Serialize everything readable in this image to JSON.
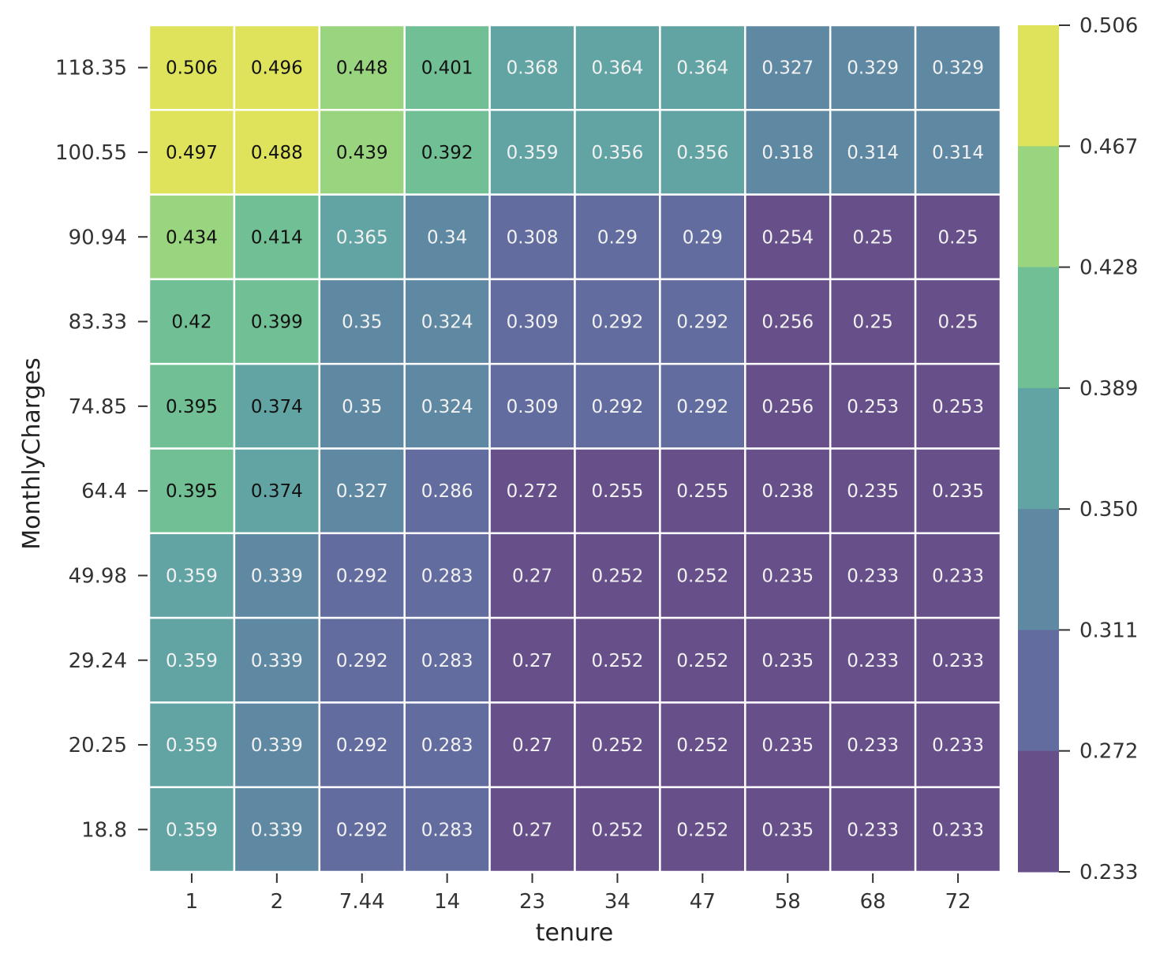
{
  "chart_data": {
    "type": "heatmap",
    "title": "",
    "xlabel": "tenure",
    "ylabel": "MonthlyCharges",
    "x_categories": [
      "1",
      "2",
      "7.44",
      "14",
      "23",
      "34",
      "47",
      "58",
      "68",
      "72"
    ],
    "y_categories": [
      "118.35",
      "100.55",
      "90.94",
      "83.33",
      "74.85",
      "64.4",
      "49.98",
      "29.24",
      "20.25",
      "18.8"
    ],
    "values": [
      [
        "0.506",
        "0.496",
        "0.448",
        "0.401",
        "0.368",
        "0.364",
        "0.364",
        "0.327",
        "0.329",
        "0.329"
      ],
      [
        "0.497",
        "0.488",
        "0.439",
        "0.392",
        "0.359",
        "0.356",
        "0.356",
        "0.318",
        "0.314",
        "0.314"
      ],
      [
        "0.434",
        "0.414",
        "0.365",
        "0.34",
        "0.308",
        "0.29",
        "0.29",
        "0.254",
        "0.25",
        "0.25"
      ],
      [
        "0.42",
        "0.399",
        "0.35",
        "0.324",
        "0.309",
        "0.292",
        "0.292",
        "0.256",
        "0.25",
        "0.25"
      ],
      [
        "0.395",
        "0.374",
        "0.35",
        "0.324",
        "0.309",
        "0.292",
        "0.292",
        "0.256",
        "0.253",
        "0.253"
      ],
      [
        "0.395",
        "0.374",
        "0.327",
        "0.286",
        "0.272",
        "0.255",
        "0.255",
        "0.238",
        "0.235",
        "0.235"
      ],
      [
        "0.359",
        "0.339",
        "0.292",
        "0.283",
        "0.27",
        "0.252",
        "0.252",
        "0.235",
        "0.233",
        "0.233"
      ],
      [
        "0.359",
        "0.339",
        "0.292",
        "0.283",
        "0.27",
        "0.252",
        "0.252",
        "0.235",
        "0.233",
        "0.233"
      ],
      [
        "0.359",
        "0.339",
        "0.292",
        "0.283",
        "0.27",
        "0.252",
        "0.252",
        "0.235",
        "0.233",
        "0.233"
      ],
      [
        "0.359",
        "0.339",
        "0.292",
        "0.283",
        "0.27",
        "0.252",
        "0.252",
        "0.235",
        "0.233",
        "0.233"
      ]
    ],
    "colorbar": {
      "ticks": [
        "0.506",
        "0.467",
        "0.428",
        "0.389",
        "0.350",
        "0.311",
        "0.272",
        "0.233"
      ],
      "range": [
        0.233,
        0.506
      ],
      "bands": [
        "#dfe35b",
        "#99d47f",
        "#71bf95",
        "#62a4a3",
        "#5f88a2",
        "#636c9e",
        "#674f8a"
      ],
      "placement": "right"
    },
    "colormap": "viridis",
    "grid": false
  }
}
